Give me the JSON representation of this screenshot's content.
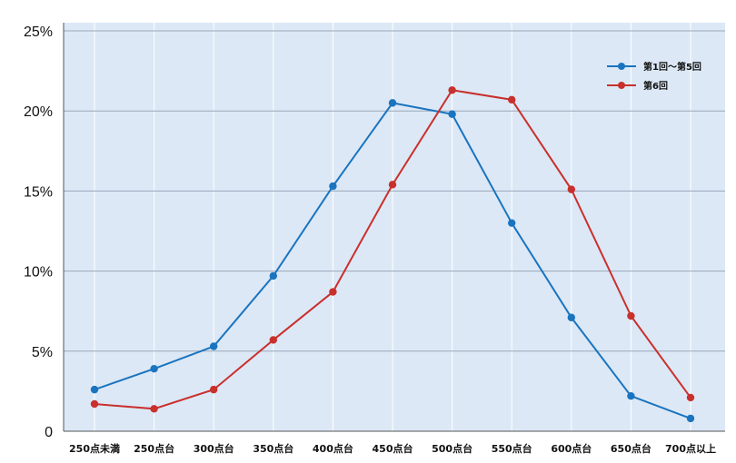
{
  "chart_data": {
    "type": "line",
    "categories": [
      "250点未満",
      "250点台",
      "300点台",
      "350点台",
      "400点台",
      "450点台",
      "500点台",
      "550点台",
      "600点台",
      "650点台",
      "700点以上"
    ],
    "y_tick_labels": [
      "0",
      "5%",
      "10%",
      "15%",
      "20%",
      "25%"
    ],
    "y_ticks": [
      0,
      5,
      10,
      15,
      20,
      25
    ],
    "ylim": [
      0,
      25
    ],
    "grid": true,
    "legend_position": "top-right",
    "plot_background": "#dce8f6",
    "series": [
      {
        "name": "第1回～第5回",
        "color": "#1a74bf",
        "values": [
          2.6,
          3.9,
          5.3,
          9.7,
          15.3,
          20.5,
          19.8,
          13.0,
          7.1,
          2.2,
          0.8
        ]
      },
      {
        "name": "第6回",
        "color": "#c9302c",
        "values": [
          1.7,
          1.4,
          2.6,
          5.7,
          8.7,
          15.4,
          21.3,
          20.7,
          15.1,
          7.2,
          2.1
        ]
      }
    ]
  }
}
